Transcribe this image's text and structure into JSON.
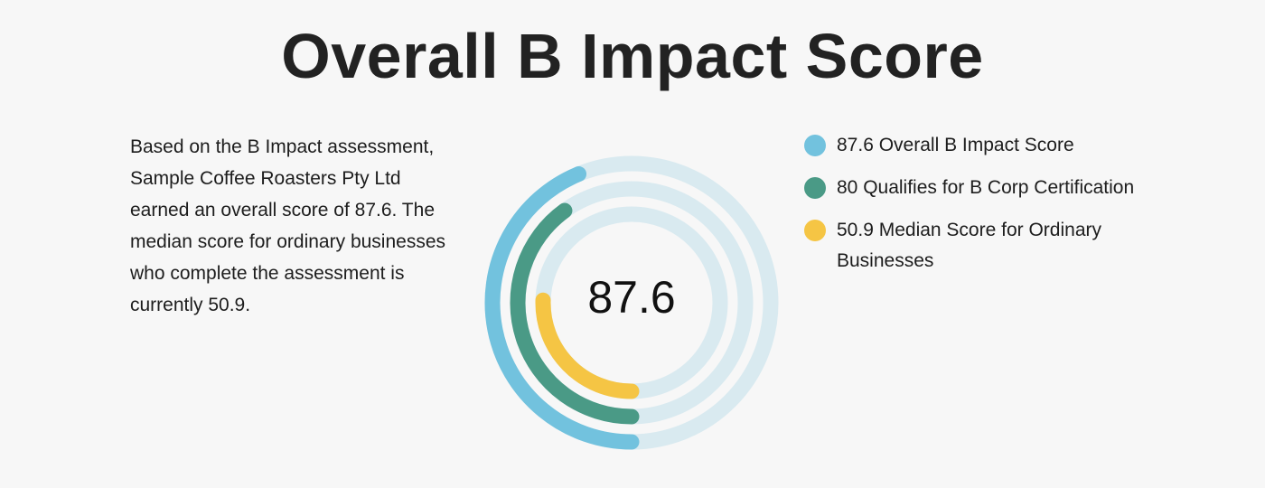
{
  "chart_data": {
    "type": "radial-bar",
    "title": "Overall B Impact Score",
    "description": "Based on the B Impact assessment, Sample Coffee Roasters Pty Ltd earned an overall score of 87.6. The median score for ordinary businesses who complete the assessment is currently 50.9.",
    "center_value": "87.6",
    "max": 200,
    "track_color": "#d9eaf0",
    "series": [
      {
        "value": 87.6,
        "value_label": "87.6",
        "name": "Overall B Impact Score",
        "color": "#72c2de"
      },
      {
        "value": 80,
        "value_label": "80",
        "name": "Qualifies for B Corp Certification",
        "color": "#4a9a86"
      },
      {
        "value": 50.9,
        "value_label": "50.9",
        "name": "Median Score for Ordinary Businesses",
        "color": "#f5c544"
      }
    ],
    "legend_position": "right"
  }
}
